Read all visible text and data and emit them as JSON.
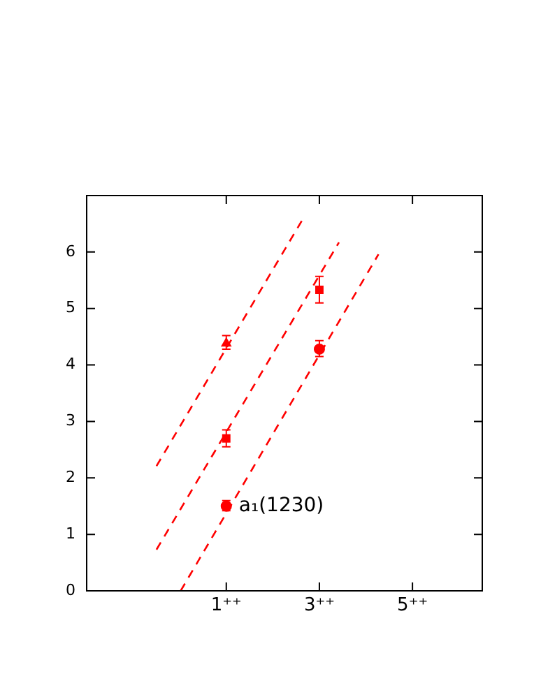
{
  "chart_data": {
    "type": "scatter",
    "xlim": [
      -2,
      6.5
    ],
    "xticks": [
      {
        "value": 1,
        "label": "1⁺⁺"
      },
      {
        "value": 3,
        "label": "3⁺⁺"
      },
      {
        "value": 5,
        "label": "5⁺⁺"
      }
    ],
    "ylim": [
      0,
      7
    ],
    "yticks": [
      0,
      1,
      2,
      3,
      4,
      5,
      6
    ],
    "grid": false,
    "legend": false,
    "series": [
      {
        "type": "line",
        "color": "#ff0000",
        "x": [
          -0.5,
          2.62
        ],
        "values": [
          2.21,
          6.55
        ],
        "marker": "none",
        "line_style": "dashed"
      },
      {
        "type": "line",
        "color": "#ff0000",
        "x": [
          -0.5,
          3.42
        ],
        "values": [
          0.73,
          6.17
        ],
        "marker": "none",
        "line_style": "dashed"
      },
      {
        "type": "line",
        "color": "#ff0000",
        "x": [
          0.02,
          4.27
        ],
        "values": [
          0,
          5.96
        ],
        "marker": "none",
        "line_style": "dashed"
      },
      {
        "color": "#ff0000",
        "x": [
          1
        ],
        "values": [
          4.38
        ],
        "marker": "triangle",
        "errors": [
          [
            4.28,
            4.52
          ]
        ]
      },
      {
        "color": "#ff0000",
        "x": [
          1,
          3
        ],
        "values": [
          2.7,
          5.33
        ],
        "marker": "square",
        "errors": [
          [
            2.55,
            2.85
          ],
          [
            5.1,
            5.57
          ]
        ]
      },
      {
        "color": "#ff0000",
        "x": [
          1,
          3
        ],
        "values": [
          1.5,
          4.28
        ],
        "marker": "circle",
        "errors": [
          [
            1.42,
            1.6
          ],
          [
            4.15,
            4.43
          ]
        ]
      }
    ],
    "annotations": [
      {
        "text": "a₁(1230)",
        "x": 1,
        "y": 1.5
      }
    ]
  }
}
